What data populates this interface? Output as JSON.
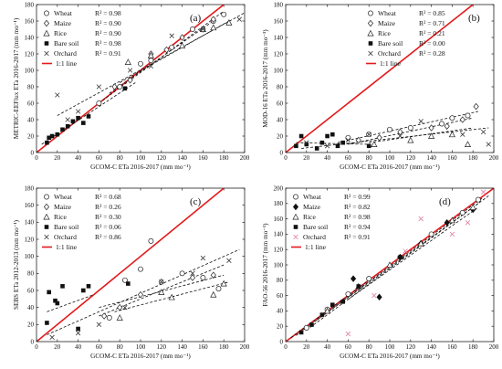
{
  "chart_data": [
    {
      "type": "scatter",
      "panel_label": "(a)",
      "xlabel": "GCOM-C ETa 2016-2017 (mm mo⁻¹)",
      "ylabel": "METRIC-EEFlux ETa 2016-2017 (mm mo⁻¹)",
      "xlim": [
        0,
        200
      ],
      "ylim": [
        0,
        180
      ],
      "xticks": [
        0,
        20,
        40,
        60,
        80,
        100,
        120,
        140,
        160,
        180,
        200
      ],
      "yticks": [
        0,
        20,
        40,
        60,
        80,
        100,
        120,
        140,
        160,
        180
      ],
      "legend_position": "top-left",
      "one_to_one_label": "1:1 line",
      "series": [
        {
          "name": "Wheat",
          "marker": "circle",
          "r2": "R² = 0.98",
          "fit": [
            [
              60,
              60
            ],
            [
              180,
              172
            ]
          ],
          "points": [
            [
              60,
              60
            ],
            [
              80,
              80
            ],
            [
              100,
              108
            ],
            [
              110,
              112
            ],
            [
              130,
              128
            ],
            [
              150,
              150
            ],
            [
              170,
              160
            ],
            [
              180,
              168
            ]
          ]
        },
        {
          "name": "Maize",
          "marker": "diamond",
          "r2": "R² = 0.90",
          "fit": [
            [
              70,
              72
            ],
            [
              170,
              160
            ]
          ],
          "points": [
            [
              75,
              80
            ],
            [
              90,
              88
            ],
            [
              110,
              120
            ],
            [
              125,
              125
            ],
            [
              140,
              140
            ],
            [
              160,
              150
            ],
            [
              170,
              162
            ]
          ]
        },
        {
          "name": "Rice",
          "marker": "triangle",
          "r2": "R² = 0.90",
          "fit": [
            [
              80,
              85
            ],
            [
              185,
              160
            ]
          ],
          "points": [
            [
              88,
              110
            ],
            [
              110,
              118
            ],
            [
              140,
              130
            ],
            [
              160,
              150
            ],
            [
              170,
              152
            ],
            [
              185,
              158
            ]
          ]
        },
        {
          "name": "Bare soil",
          "marker": "square",
          "r2": "R² = 0.98",
          "fit": [
            [
              5,
              10
            ],
            [
              95,
              85
            ]
          ],
          "points": [
            [
              10,
              12
            ],
            [
              12,
              18
            ],
            [
              15,
              20
            ],
            [
              20,
              22
            ],
            [
              25,
              28
            ],
            [
              30,
              32
            ],
            [
              35,
              38
            ],
            [
              40,
              42
            ],
            [
              45,
              36
            ],
            [
              50,
              44
            ],
            [
              85,
              78
            ]
          ]
        },
        {
          "name": "Orchard",
          "marker": "cross",
          "r2": "R² = 0.91",
          "fit": [
            [
              20,
              45
            ],
            [
              200,
              170
            ]
          ],
          "points": [
            [
              20,
              70
            ],
            [
              30,
              40
            ],
            [
              40,
              50
            ],
            [
              60,
              80
            ],
            [
              90,
              100
            ],
            [
              110,
              105
            ],
            [
              130,
              142
            ],
            [
              160,
              150
            ],
            [
              195,
              162
            ]
          ]
        }
      ]
    },
    {
      "type": "scatter",
      "panel_label": "(b)",
      "xlabel": "GCOM-C ETa 2016-2017 (mm mo⁻¹)",
      "ylabel": "MOD-16 ETa 2016-2017 (mm mo⁻¹)",
      "xlim": [
        0,
        200
      ],
      "ylim": [
        0,
        180
      ],
      "xticks": [
        0,
        20,
        40,
        60,
        80,
        100,
        120,
        140,
        160,
        180,
        200
      ],
      "yticks": [
        0,
        20,
        40,
        60,
        80,
        100,
        120,
        140,
        160,
        180
      ],
      "legend_position": "top-right",
      "one_to_one_label": "1:1 line",
      "series": [
        {
          "name": "Wheat",
          "marker": "circle",
          "r2": "R² = 0.85",
          "fit": [
            [
              50,
              12
            ],
            [
              185,
              50
            ]
          ],
          "points": [
            [
              60,
              18
            ],
            [
              80,
              22
            ],
            [
              100,
              28
            ],
            [
              120,
              30
            ],
            [
              150,
              35
            ],
            [
              160,
              42
            ],
            [
              175,
              45
            ]
          ]
        },
        {
          "name": "Maize",
          "marker": "diamond",
          "r2": "R² = 0.71",
          "fit": [
            [
              60,
              10
            ],
            [
              180,
              42
            ]
          ],
          "points": [
            [
              70,
              15
            ],
            [
              90,
              18
            ],
            [
              110,
              25
            ],
            [
              140,
              30
            ],
            [
              155,
              32
            ],
            [
              170,
              40
            ],
            [
              183,
              56
            ]
          ]
        },
        {
          "name": "Rice",
          "marker": "triangle",
          "r2": "R² = 0.21",
          "fit": [
            [
              80,
              12
            ],
            [
              180,
              30
            ]
          ],
          "points": [
            [
              85,
              10
            ],
            [
              120,
              15
            ],
            [
              140,
              20
            ],
            [
              160,
              22
            ],
            [
              175,
              10
            ]
          ]
        },
        {
          "name": "Bare soil",
          "marker": "square",
          "r2": "R² = 0.00",
          "fit": [
            [
              10,
              12
            ],
            [
              80,
              10
            ]
          ],
          "points": [
            [
              10,
              8
            ],
            [
              15,
              20
            ],
            [
              20,
              10
            ],
            [
              30,
              5
            ],
            [
              35,
              12
            ],
            [
              40,
              20
            ],
            [
              45,
              22
            ],
            [
              50,
              8
            ],
            [
              55,
              12
            ],
            [
              80,
              8
            ]
          ]
        },
        {
          "name": "Orchard",
          "marker": "cross",
          "r2": "R² = 0.28",
          "fit": [
            [
              15,
              5
            ],
            [
              195,
              30
            ]
          ],
          "points": [
            [
              20,
              12
            ],
            [
              40,
              8
            ],
            [
              60,
              15
            ],
            [
              80,
              22
            ],
            [
              110,
              20
            ],
            [
              130,
              38
            ],
            [
              170,
              22
            ],
            [
              190,
              25
            ],
            [
              195,
              10
            ]
          ]
        }
      ]
    },
    {
      "type": "scatter",
      "panel_label": "(c)",
      "xlabel": "GCOM-C ETa 2016-2017 (mm mo⁻¹)",
      "ylabel": "SEBS ETa 2012-2013 (mm mo⁻¹)",
      "xlim": [
        0,
        200
      ],
      "ylim": [
        0,
        180
      ],
      "xticks": [
        0,
        20,
        40,
        60,
        80,
        100,
        120,
        140,
        160,
        180,
        200
      ],
      "yticks": [
        0,
        20,
        40,
        60,
        80,
        100,
        120,
        140,
        160,
        180
      ],
      "legend_position": "top-left",
      "one_to_one_label": "1:1 line",
      "series": [
        {
          "name": "Wheat",
          "marker": "circle",
          "r2": "R² = 0.68",
          "fit": [
            [
              60,
              30
            ],
            [
              180,
              90
            ]
          ],
          "points": [
            [
              70,
              28
            ],
            [
              85,
              72
            ],
            [
              100,
              85
            ],
            [
              110,
              118
            ],
            [
              140,
              80
            ],
            [
              160,
              75
            ],
            [
              175,
              62
            ]
          ]
        },
        {
          "name": "Maize",
          "marker": "diamond",
          "r2": "R² = 0.26",
          "fit": [
            [
              60,
              40
            ],
            [
              180,
              78
            ]
          ],
          "points": [
            [
              65,
              30
            ],
            [
              80,
              40
            ],
            [
              100,
              55
            ],
            [
              120,
              70
            ],
            [
              150,
              75
            ],
            [
              170,
              78
            ]
          ]
        },
        {
          "name": "Rice",
          "marker": "triangle",
          "r2": "R² = 0.30",
          "fit": [
            [
              75,
              35
            ],
            [
              185,
              70
            ]
          ],
          "points": [
            [
              80,
              28
            ],
            [
              120,
              58
            ],
            [
              130,
              52
            ],
            [
              170,
              55
            ],
            [
              180,
              68
            ]
          ]
        },
        {
          "name": "Bare soil",
          "marker": "square",
          "r2": "R² = 0.06",
          "fit": [
            [
              10,
              35
            ],
            [
              55,
              55
            ]
          ],
          "points": [
            [
              10,
              22
            ],
            [
              12,
              58
            ],
            [
              18,
              48
            ],
            [
              20,
              45
            ],
            [
              25,
              65
            ],
            [
              40,
              15
            ],
            [
              45,
              60
            ],
            [
              50,
              65
            ],
            [
              88,
              68
            ]
          ]
        },
        {
          "name": "Orchard",
          "marker": "cross",
          "r2": "R² = 0.86",
          "fit": [
            [
              10,
              8
            ],
            [
              195,
              108
            ]
          ],
          "points": [
            [
              15,
              5
            ],
            [
              40,
              10
            ],
            [
              60,
              20
            ],
            [
              85,
              40
            ],
            [
              120,
              70
            ],
            [
              150,
              80
            ],
            [
              160,
              98
            ],
            [
              185,
              95
            ]
          ]
        }
      ]
    },
    {
      "type": "scatter",
      "panel_label": "(d)",
      "xlabel": "GCOM-C ETa 2016-2017 (mm mo⁻¹)",
      "ylabel": "FAO-56 2016-2017 (mm mo⁻¹)",
      "xlim": [
        0,
        200
      ],
      "ylim": [
        0,
        200
      ],
      "xticks": [
        0,
        20,
        40,
        60,
        80,
        100,
        120,
        140,
        160,
        180,
        200
      ],
      "yticks": [
        0,
        20,
        40,
        60,
        80,
        100,
        120,
        140,
        160,
        180,
        200
      ],
      "legend_position": "top-left",
      "one_to_one_label": "1:1 line",
      "series": [
        {
          "name": "Wheat",
          "marker": "circle",
          "r2": "R² = 0.99",
          "fit": [
            [
              10,
              8
            ],
            [
              190,
              188
            ]
          ],
          "points": [
            [
              20,
              18
            ],
            [
              40,
              42
            ],
            [
              60,
              62
            ],
            [
              80,
              82
            ],
            [
              110,
              110
            ],
            [
              140,
              140
            ],
            [
              170,
              168
            ],
            [
              185,
              185
            ]
          ]
        },
        {
          "name": "Maize",
          "marker": "filled-diamond",
          "r2": "R² = 0.82",
          "fit": [
            [
              60,
              55
            ],
            [
              185,
              175
            ]
          ],
          "points": [
            [
              65,
              82
            ],
            [
              90,
              58
            ],
            [
              110,
              110
            ],
            [
              130,
              128
            ],
            [
              155,
              155
            ],
            [
              180,
              172
            ]
          ]
        },
        {
          "name": "Rice",
          "marker": "triangle",
          "r2": "R² = 0.98",
          "fit": [
            [
              30,
              28
            ],
            [
              185,
              180
            ]
          ],
          "points": [
            [
              40,
              40
            ],
            [
              70,
              72
            ],
            [
              100,
              100
            ],
            [
              130,
              128
            ],
            [
              160,
              158
            ],
            [
              180,
              175
            ]
          ]
        },
        {
          "name": "Bare soil",
          "marker": "square",
          "r2": "R² = 0.94",
          "fit": [
            [
              5,
              5
            ],
            [
              80,
              80
            ]
          ],
          "points": [
            [
              15,
              12
            ],
            [
              25,
              22
            ],
            [
              35,
              35
            ],
            [
              45,
              48
            ],
            [
              55,
              52
            ],
            [
              70,
              72
            ]
          ]
        },
        {
          "name": "Orchard",
          "marker": "cross-pink",
          "r2": "R² = 0.91",
          "fit": [
            [
              20,
              15
            ],
            [
              195,
              190
            ]
          ],
          "points": [
            [
              60,
              10
            ],
            [
              85,
              60
            ],
            [
              115,
              118
            ],
            [
              130,
              160
            ],
            [
              160,
              140
            ],
            [
              175,
              155
            ],
            [
              190,
              195
            ]
          ]
        }
      ]
    }
  ]
}
